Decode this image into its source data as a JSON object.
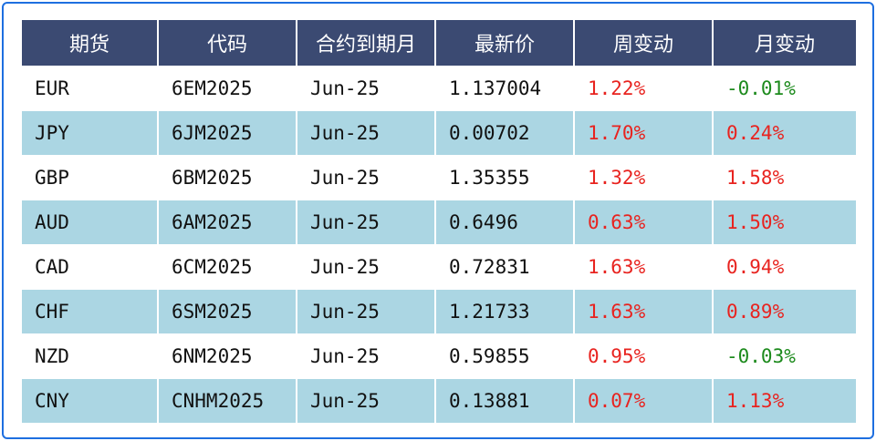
{
  "table": {
    "headers": [
      "期货",
      "代码",
      "合约到期月",
      "最新价",
      "周变动",
      "月变动"
    ],
    "rows": [
      {
        "future": "EUR",
        "code": "6EM2025",
        "expiry": "Jun-25",
        "price": "1.137004",
        "weekly": "1.22%",
        "monthly": "-0.01%"
      },
      {
        "future": "JPY",
        "code": "6JM2025",
        "expiry": "Jun-25",
        "price": "0.00702",
        "weekly": "1.70%",
        "monthly": "0.24%"
      },
      {
        "future": "GBP",
        "code": "6BM2025",
        "expiry": "Jun-25",
        "price": "1.35355",
        "weekly": "1.32%",
        "monthly": "1.58%"
      },
      {
        "future": "AUD",
        "code": "6AM2025",
        "expiry": "Jun-25",
        "price": "0.6496",
        "weekly": "0.63%",
        "monthly": "1.50%"
      },
      {
        "future": "CAD",
        "code": "6CM2025",
        "expiry": "Jun-25",
        "price": "0.72831",
        "weekly": "1.63%",
        "monthly": "0.94%"
      },
      {
        "future": "CHF",
        "code": "6SM2025",
        "expiry": "Jun-25",
        "price": "1.21733",
        "weekly": "1.63%",
        "monthly": "0.89%"
      },
      {
        "future": "NZD",
        "code": "6NM2025",
        "expiry": "Jun-25",
        "price": "0.59855",
        "weekly": "0.95%",
        "monthly": "-0.03%"
      },
      {
        "future": "CNY",
        "code": "CNHM2025",
        "expiry": "Jun-25",
        "price": "0.13881",
        "weekly": "0.07%",
        "monthly": "1.13%"
      }
    ]
  },
  "colors": {
    "header_bg": "#3B4A72",
    "stripe_bg": "#ABD6E3",
    "positive": "#E8231F",
    "negative": "#1C8A1C",
    "frame_border": "#1E6FE0"
  }
}
